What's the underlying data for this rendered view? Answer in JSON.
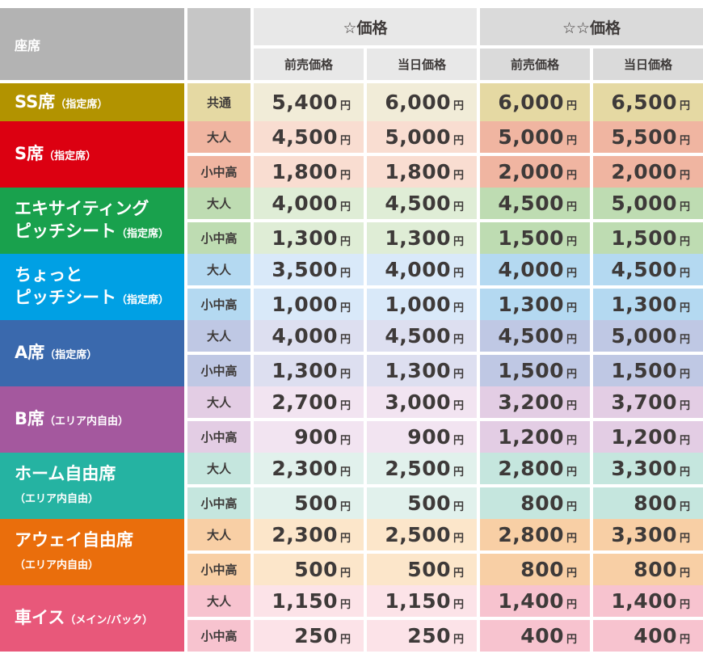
{
  "header": {
    "seat_label": "座席",
    "groups": [
      {
        "title": "☆価格",
        "sub_headers": [
          "前売価格",
          "当日価格"
        ]
      },
      {
        "title": "☆☆価格",
        "sub_headers": [
          "前売価格",
          "当日価格"
        ]
      }
    ]
  },
  "units": {
    "yen": "円"
  },
  "rows": [
    {
      "name_lines": [
        {
          "main": "SS席",
          "small": "（指定席）"
        }
      ],
      "colors": {
        "label": "#b29300",
        "mid": "#e5d9a3",
        "light": "#f1ecd8"
      },
      "subrows": [
        {
          "type": "共通",
          "prices": [
            "5,400",
            "6,000",
            "6,000",
            "6,500"
          ]
        }
      ]
    },
    {
      "name_lines": [
        {
          "main": "S席",
          "small": "（指定席）"
        }
      ],
      "colors": {
        "label": "#dc0011",
        "mid": "#f0b5a1",
        "light": "#f9ddd1"
      },
      "subrows": [
        {
          "type": "大人",
          "prices": [
            "4,500",
            "5,000",
            "5,000",
            "5,500"
          ]
        },
        {
          "type": "小中高",
          "prices": [
            "1,800",
            "1,800",
            "2,000",
            "2,000"
          ]
        }
      ]
    },
    {
      "name_lines": [
        {
          "main": "エキサイティング",
          "small": ""
        },
        {
          "main": "ピッチシート",
          "small": "（指定席）"
        }
      ],
      "colors": {
        "label": "#19a14d",
        "mid": "#bedcb2",
        "light": "#dfedd6"
      },
      "subrows": [
        {
          "type": "大人",
          "prices": [
            "4,000",
            "4,500",
            "4,500",
            "5,000"
          ]
        },
        {
          "type": "小中高",
          "prices": [
            "1,300",
            "1,300",
            "1,500",
            "1,500"
          ]
        }
      ]
    },
    {
      "name_lines": [
        {
          "main": "ちょっと",
          "small": ""
        },
        {
          "main": "ピッチシート",
          "small": "（指定席）"
        }
      ],
      "colors": {
        "label": "#00a0e4",
        "mid": "#b4d9f1",
        "light": "#d9e9f9"
      },
      "subrows": [
        {
          "type": "大人",
          "prices": [
            "3,500",
            "4,000",
            "4,000",
            "4,500"
          ]
        },
        {
          "type": "小中高",
          "prices": [
            "1,000",
            "1,000",
            "1,300",
            "1,300"
          ]
        }
      ]
    },
    {
      "name_lines": [
        {
          "main": "A席",
          "small": "（指定席）"
        }
      ],
      "colors": {
        "label": "#3a69ad",
        "mid": "#bfc8e4",
        "light": "#dddff0"
      },
      "subrows": [
        {
          "type": "大人",
          "prices": [
            "4,000",
            "4,500",
            "4,500",
            "5,000"
          ]
        },
        {
          "type": "小中高",
          "prices": [
            "1,300",
            "1,300",
            "1,500",
            "1,500"
          ]
        }
      ]
    },
    {
      "name_lines": [
        {
          "main": "B席",
          "small": "（エリア内自由）"
        }
      ],
      "colors": {
        "label": "#a4589e",
        "mid": "#e3cde4",
        "light": "#f2e4f1"
      },
      "subrows": [
        {
          "type": "大人",
          "prices": [
            "2,700",
            "3,000",
            "3,200",
            "3,700"
          ]
        },
        {
          "type": "小中高",
          "prices": [
            "900",
            "900",
            "1,200",
            "1,200"
          ]
        }
      ]
    },
    {
      "name_lines": [
        {
          "main": "ホーム自由席",
          "small": ""
        },
        {
          "main": "",
          "small": "（エリア内自由）"
        }
      ],
      "colors": {
        "label": "#25b3a2",
        "mid": "#c5e6de",
        "light": "#e1f1ec"
      },
      "subrows": [
        {
          "type": "大人",
          "prices": [
            "2,300",
            "2,500",
            "2,800",
            "3,300"
          ]
        },
        {
          "type": "小中高",
          "prices": [
            "500",
            "500",
            "800",
            "800"
          ]
        }
      ]
    },
    {
      "name_lines": [
        {
          "main": "アウェイ自由席",
          "small": ""
        },
        {
          "main": "",
          "small": "（エリア内自由）"
        }
      ],
      "colors": {
        "label": "#ea6e0c",
        "mid": "#f8cfa5",
        "light": "#fce6ca"
      },
      "subrows": [
        {
          "type": "大人",
          "prices": [
            "2,300",
            "2,500",
            "2,800",
            "3,300"
          ]
        },
        {
          "type": "小中高",
          "prices": [
            "500",
            "500",
            "800",
            "800"
          ]
        }
      ]
    },
    {
      "name_lines": [
        {
          "main": "車イス",
          "small": "（メイン/バック）"
        }
      ],
      "colors": {
        "label": "#e8587a",
        "mid": "#f7c3cf",
        "light": "#fce3e8"
      },
      "subrows": [
        {
          "type": "大人",
          "prices": [
            "1,150",
            "1,150",
            "1,400",
            "1,400"
          ]
        },
        {
          "type": "小中高",
          "prices": [
            "250",
            "250",
            "400",
            "400"
          ]
        }
      ]
    }
  ]
}
